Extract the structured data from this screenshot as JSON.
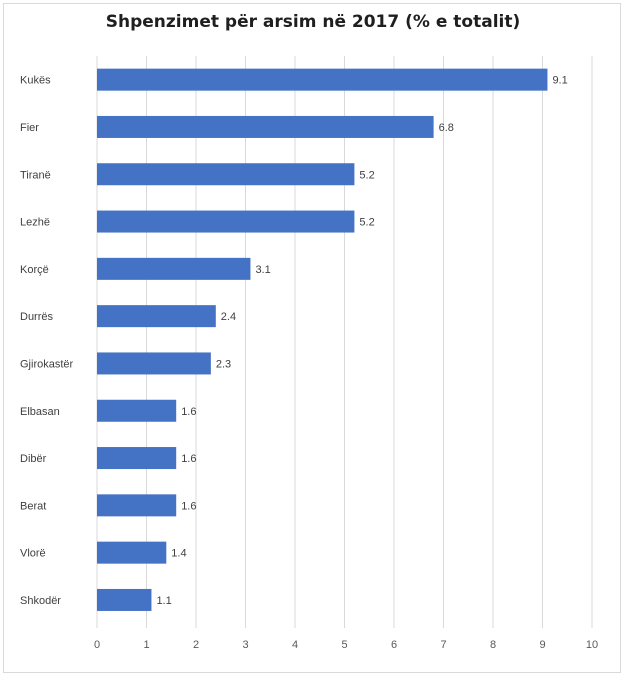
{
  "chart_data": {
    "type": "bar",
    "orientation": "horizontal",
    "title": "Shpenzimet për arsim në 2017 (% e totalit)",
    "categories": [
      "Kukës",
      "Fier",
      "Tiranë",
      "Lezhë",
      "Korçë",
      "Durrës",
      "Gjirokastër",
      "Elbasan",
      "Dibër",
      "Berat",
      "Vlorë",
      "Shkodër"
    ],
    "values": [
      9.1,
      6.8,
      5.2,
      5.2,
      3.1,
      2.4,
      2.3,
      1.6,
      1.6,
      1.6,
      1.4,
      1.1
    ],
    "data_labels": [
      "9.1",
      "6.8",
      "5.2",
      "5.2",
      "3.1",
      "2.4",
      "2.3",
      "1.6",
      "1.6",
      "1.6",
      "1.4",
      "1.1"
    ],
    "xlim": [
      0,
      10
    ],
    "xticks": [
      "0",
      "1",
      "2",
      "3",
      "4",
      "5",
      "6",
      "7",
      "8",
      "9",
      "10"
    ],
    "grid": "vertical",
    "legend": "none",
    "bar_color": "#4472c4"
  }
}
